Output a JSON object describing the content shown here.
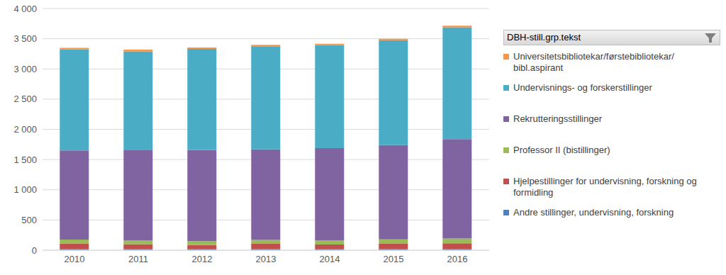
{
  "chart_data": {
    "type": "bar",
    "stacked": true,
    "legend": "right",
    "legend_title": "DBH-still.grp.tekst",
    "grid": true,
    "categories": [
      "2010",
      "2011",
      "2012",
      "2013",
      "2014",
      "2015",
      "2016"
    ],
    "ylim": [
      0,
      4000
    ],
    "yticks": [
      0,
      500,
      {
        "value": 1000,
        "label": "1 000"
      },
      {
        "value": 1500,
        "label": "1 500"
      },
      {
        "value": 2000,
        "label": "2 000"
      },
      {
        "value": 2500,
        "label": "2 500"
      },
      {
        "value": 3000,
        "label": "3 000"
      },
      {
        "value": 3500,
        "label": "3 500"
      },
      {
        "value": 4000,
        "label": "4 000"
      }
    ],
    "series": [
      {
        "name": "Andre stillinger, undervisning, forskning",
        "color": "#4f81bd",
        "values": [
          20,
          20,
          20,
          20,
          20,
          20,
          20
        ]
      },
      {
        "name": "Hjelpestillinger for undervisning, forskning og formidling",
        "color": "#c0504d",
        "values": [
          90,
          80,
          65,
          85,
          75,
          85,
          95
        ]
      },
      {
        "name": "Professor II (bistillinger)",
        "color": "#9bbb59",
        "values": [
          65,
          65,
          65,
          65,
          70,
          75,
          80
        ]
      },
      {
        "name": "Rekrutteringsstillinger",
        "color": "#8064a2",
        "values": [
          1475,
          1490,
          1510,
          1500,
          1525,
          1560,
          1645
        ]
      },
      {
        "name": "Undervisnings- og forskerstillinger",
        "color": "#4bacc6",
        "values": [
          1675,
          1635,
          1670,
          1705,
          1705,
          1735,
          1850
        ]
      },
      {
        "name": "Universitetsbibliotekar/førstebibliotekar/ bibl.aspirant",
        "color": "#f79646",
        "values": [
          25,
          30,
          25,
          25,
          20,
          25,
          25
        ]
      }
    ]
  }
}
